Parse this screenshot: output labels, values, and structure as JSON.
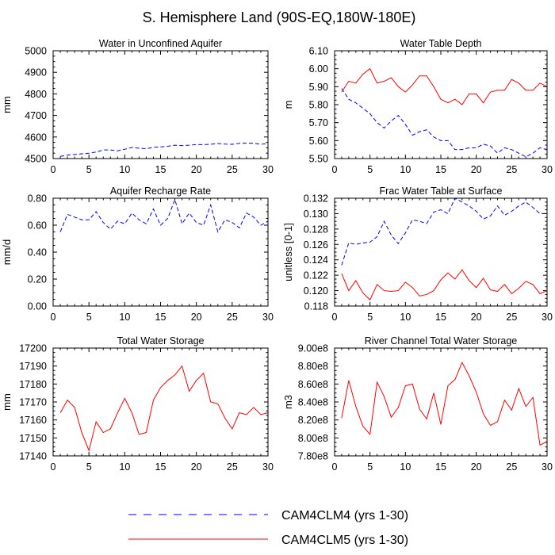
{
  "figure": {
    "title": "S. Hemisphere Land (90S-EQ,180W-180E)",
    "legend": [
      {
        "label": "CAM4CLM4 (yrs 1-30)",
        "color": "#0000ff",
        "dash": "dashed"
      },
      {
        "label": "CAM4CLM5 (yrs 1-30)",
        "color": "#ff0000",
        "dash": "solid"
      }
    ]
  },
  "chart_data": [
    {
      "type": "line",
      "title": "Water in Unconfined Aquifer",
      "xlabel": "",
      "ylabel": "mm",
      "xlim": [
        0,
        30
      ],
      "ylim": [
        4500,
        5000
      ],
      "xticks": [
        0,
        5,
        10,
        15,
        20,
        25,
        30
      ],
      "yticks": [
        4500,
        4600,
        4700,
        4800,
        4900,
        5000
      ],
      "ytick_labels": [
        "4500",
        "4600",
        "4700",
        "4800",
        "4900",
        "5000"
      ],
      "x": [
        1,
        2,
        3,
        4,
        5,
        6,
        7,
        8,
        9,
        10,
        11,
        12,
        13,
        14,
        15,
        16,
        17,
        18,
        19,
        20,
        21,
        22,
        23,
        24,
        25,
        26,
        27,
        28,
        29,
        30
      ],
      "series": [
        {
          "name": "CAM4CLM4 (yrs 1-30)",
          "color": "#0000ff",
          "dash": "dashed",
          "values": [
            4510,
            4516,
            4519,
            4522,
            4525,
            4530,
            4540,
            4540,
            4536,
            4543,
            4552,
            4548,
            4546,
            4552,
            4554,
            4557,
            4562,
            4560,
            4562,
            4565,
            4565,
            4566,
            4570,
            4567,
            4566,
            4571,
            4572,
            4571,
            4566,
            4570
          ]
        },
        {
          "name": "CAM4CLM5 (yrs 1-30)",
          "color": "#ff0000",
          "dash": "solid",
          "values": [
            5000,
            5000,
            5000,
            5000,
            5000,
            5000,
            5000,
            5000,
            5000,
            5000,
            5000,
            5000,
            5000,
            5000,
            5000,
            5000,
            5000,
            5000,
            5000,
            5000,
            5000,
            5000,
            5000,
            5000,
            5000,
            5000,
            5000,
            5000,
            5000,
            5000
          ]
        }
      ]
    },
    {
      "type": "line",
      "title": "Water Table Depth",
      "xlabel": "",
      "ylabel": "m",
      "xlim": [
        0,
        30
      ],
      "ylim": [
        5.5,
        6.1
      ],
      "xticks": [
        0,
        5,
        10,
        15,
        20,
        25,
        30
      ],
      "yticks": [
        5.5,
        5.6,
        5.7,
        5.8,
        5.9,
        6.0,
        6.1
      ],
      "ytick_labels": [
        "5.50",
        "5.60",
        "5.70",
        "5.80",
        "5.90",
        "6.00",
        "6.10"
      ],
      "x": [
        1,
        2,
        3,
        4,
        5,
        6,
        7,
        8,
        9,
        10,
        11,
        12,
        13,
        14,
        15,
        16,
        17,
        18,
        19,
        20,
        21,
        22,
        23,
        24,
        25,
        26,
        27,
        28,
        29,
        30
      ],
      "series": [
        {
          "name": "CAM4CLM4 (yrs 1-30)",
          "color": "#0000ff",
          "dash": "dashed",
          "values": [
            5.89,
            5.83,
            5.81,
            5.78,
            5.75,
            5.7,
            5.67,
            5.71,
            5.74,
            5.69,
            5.63,
            5.65,
            5.66,
            5.62,
            5.6,
            5.6,
            5.55,
            5.55,
            5.56,
            5.56,
            5.58,
            5.57,
            5.53,
            5.56,
            5.55,
            5.53,
            5.51,
            5.53,
            5.56,
            5.55
          ]
        },
        {
          "name": "CAM4CLM5 (yrs 1-30)",
          "color": "#ff0000",
          "dash": "solid",
          "values": [
            5.87,
            5.93,
            5.92,
            5.97,
            6.0,
            5.92,
            5.93,
            5.95,
            5.9,
            5.87,
            5.91,
            5.96,
            5.96,
            5.9,
            5.83,
            5.81,
            5.83,
            5.8,
            5.86,
            5.86,
            5.81,
            5.87,
            5.88,
            5.88,
            5.94,
            5.92,
            5.88,
            5.88,
            5.92,
            5.9
          ]
        }
      ]
    },
    {
      "type": "line",
      "title": "Aquifer Recharge Rate",
      "xlabel": "",
      "ylabel": "mm/d",
      "xlim": [
        0,
        30
      ],
      "ylim": [
        0,
        0.8
      ],
      "xticks": [
        0,
        5,
        10,
        15,
        20,
        25,
        30
      ],
      "yticks": [
        0,
        0.2,
        0.4,
        0.6,
        0.8
      ],
      "ytick_labels": [
        "0.00",
        "0.20",
        "0.40",
        "0.60",
        "0.80"
      ],
      "x": [
        1,
        2,
        3,
        4,
        5,
        6,
        7,
        8,
        9,
        10,
        11,
        12,
        13,
        14,
        15,
        16,
        17,
        18,
        19,
        20,
        21,
        22,
        23,
        24,
        25,
        26,
        27,
        28,
        29,
        30
      ],
      "series": [
        {
          "name": "CAM4CLM4 (yrs 1-30)",
          "color": "#0000ff",
          "dash": "dashed",
          "values": [
            0.55,
            0.68,
            0.66,
            0.64,
            0.64,
            0.7,
            0.62,
            0.57,
            0.63,
            0.61,
            0.69,
            0.64,
            0.61,
            0.72,
            0.6,
            0.65,
            0.79,
            0.61,
            0.69,
            0.62,
            0.6,
            0.75,
            0.55,
            0.64,
            0.62,
            0.58,
            0.69,
            0.66,
            0.6,
            0.63
          ]
        },
        {
          "name": "CAM4CLM5 (yrs 1-30)",
          "color": "#ff0000",
          "dash": "solid",
          "values": [
            0,
            0,
            0,
            0,
            0,
            0,
            0,
            0,
            0,
            0,
            0,
            0,
            0,
            0,
            0,
            0,
            0,
            0,
            0,
            0,
            0,
            0,
            0,
            0,
            0,
            0,
            0,
            0,
            0,
            0
          ]
        }
      ]
    },
    {
      "type": "line",
      "title": "Frac Water Table at Surface",
      "xlabel": "",
      "ylabel": "unitless [0-1]",
      "xlim": [
        0,
        30
      ],
      "ylim": [
        0.118,
        0.132
      ],
      "xticks": [
        0,
        5,
        10,
        15,
        20,
        25,
        30
      ],
      "yticks": [
        0.118,
        0.12,
        0.122,
        0.124,
        0.126,
        0.128,
        0.13,
        0.132
      ],
      "ytick_labels": [
        "0.118",
        "0.120",
        "0.122",
        "0.124",
        "0.126",
        "0.128",
        "0.130",
        "0.132"
      ],
      "x": [
        1,
        2,
        3,
        4,
        5,
        6,
        7,
        8,
        9,
        10,
        11,
        12,
        13,
        14,
        15,
        16,
        17,
        18,
        19,
        20,
        21,
        22,
        23,
        24,
        25,
        26,
        27,
        28,
        29,
        30
      ],
      "series": [
        {
          "name": "CAM4CLM4 (yrs 1-30)",
          "color": "#0000ff",
          "dash": "dashed",
          "values": [
            0.1233,
            0.1262,
            0.126,
            0.1262,
            0.1263,
            0.127,
            0.129,
            0.1272,
            0.1261,
            0.1275,
            0.1292,
            0.129,
            0.1287,
            0.1302,
            0.1305,
            0.13,
            0.132,
            0.1315,
            0.131,
            0.1303,
            0.1293,
            0.1297,
            0.131,
            0.1298,
            0.1303,
            0.131,
            0.1315,
            0.1308,
            0.13,
            0.13
          ]
        },
        {
          "name": "CAM4CLM5 (yrs 1-30)",
          "color": "#ff0000",
          "dash": "solid",
          "values": [
            0.1222,
            0.12,
            0.1213,
            0.1197,
            0.1188,
            0.1208,
            0.12,
            0.1199,
            0.12,
            0.1211,
            0.1204,
            0.1193,
            0.1195,
            0.12,
            0.1214,
            0.1223,
            0.1215,
            0.1227,
            0.1213,
            0.1204,
            0.1216,
            0.1201,
            0.1199,
            0.1208,
            0.1196,
            0.1203,
            0.1212,
            0.1208,
            0.1196,
            0.12
          ]
        }
      ]
    },
    {
      "type": "line",
      "title": "Total Water Storage",
      "xlabel": "",
      "ylabel": "mm",
      "xlim": [
        0,
        30
      ],
      "ylim": [
        17140,
        17200
      ],
      "xticks": [
        0,
        5,
        10,
        15,
        20,
        25,
        30
      ],
      "yticks": [
        17140,
        17150,
        17160,
        17170,
        17180,
        17190,
        17200
      ],
      "ytick_labels": [
        "17140",
        "17150",
        "17160",
        "17170",
        "17180",
        "17190",
        "17200"
      ],
      "x": [
        1,
        2,
        3,
        4,
        5,
        6,
        7,
        8,
        9,
        10,
        11,
        12,
        13,
        14,
        15,
        16,
        17,
        18,
        19,
        20,
        21,
        22,
        23,
        24,
        25,
        26,
        27,
        28,
        29,
        30
      ],
      "series": [
        {
          "name": "CAM4CLM5 (yrs 1-30)",
          "color": "#ff0000",
          "dash": "solid",
          "values": [
            17164,
            17171,
            17167,
            17153,
            17143,
            17159,
            17153,
            17155,
            17164,
            17172,
            17164,
            17152,
            17153,
            17171,
            17178,
            17182,
            17185,
            17190,
            17176,
            17182,
            17186,
            17170,
            17169,
            17161,
            17155,
            17164,
            17163,
            17167,
            17163,
            17164
          ]
        }
      ]
    },
    {
      "type": "line",
      "title": "River Channel Total Water Storage",
      "xlabel": "",
      "ylabel": "m3",
      "xlim": [
        0,
        30
      ],
      "ylim": [
        780000000,
        900000000
      ],
      "xticks": [
        0,
        5,
        10,
        15,
        20,
        25,
        30
      ],
      "yticks": [
        780000000,
        800000000,
        820000000,
        840000000,
        860000000,
        880000000,
        900000000
      ],
      "ytick_labels": [
        "7.80e8",
        "8.00e8",
        "8.20e8",
        "8.40e8",
        "8.60e8",
        "8.80e8",
        "9.00e8"
      ],
      "x": [
        1,
        2,
        3,
        4,
        5,
        6,
        7,
        8,
        9,
        10,
        11,
        12,
        13,
        14,
        15,
        16,
        17,
        18,
        19,
        20,
        21,
        22,
        23,
        24,
        25,
        26,
        27,
        28,
        29,
        30
      ],
      "series": [
        {
          "name": "CAM4CLM5 (yrs 1-30)",
          "color": "#ff0000",
          "dash": "solid",
          "values": [
            822000000,
            864000000,
            835000000,
            813000000,
            804000000,
            862000000,
            846000000,
            823000000,
            834000000,
            858000000,
            860000000,
            832000000,
            821000000,
            850000000,
            815000000,
            858000000,
            865000000,
            884000000,
            869000000,
            851000000,
            827000000,
            814000000,
            818000000,
            842000000,
            831000000,
            855000000,
            835000000,
            845000000,
            792000000,
            796000000
          ]
        }
      ]
    }
  ]
}
